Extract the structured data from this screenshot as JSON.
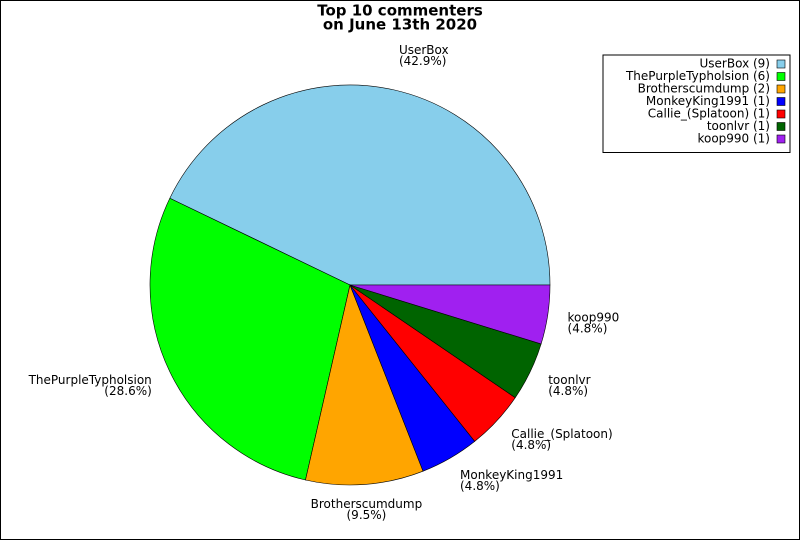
{
  "chart_data": {
    "type": "pie",
    "title": [
      "Top 10 commenters",
      "on June 13th 2020"
    ],
    "categories": [
      "UserBox",
      "ThePurpleTypholsion",
      "Brotherscumdump",
      "MonkeyKing1991",
      "Callie_(Splatoon)",
      "toonlvr",
      "koop990"
    ],
    "values": [
      9,
      6,
      2,
      1,
      1,
      1,
      1
    ],
    "percent_labels": [
      "(42.9%)",
      "(28.6%)",
      "(9.5%)",
      "(4.8%)",
      "(4.8%)",
      "(4.8%)",
      "(4.8%)"
    ],
    "legend_labels": [
      "UserBox (9)",
      "ThePurpleTypholsion (6)",
      "Brotherscumdump (2)",
      "MonkeyKing1991 (1)",
      "Callie_(Splatoon) (1)",
      "toonlvr (1)",
      "koop990 (1)"
    ],
    "colors": [
      "#87ceeb",
      "#00ff00",
      "#ffa500",
      "#0000ff",
      "#ff0000",
      "#006400",
      "#a020f0"
    ],
    "legend": "upper right"
  }
}
